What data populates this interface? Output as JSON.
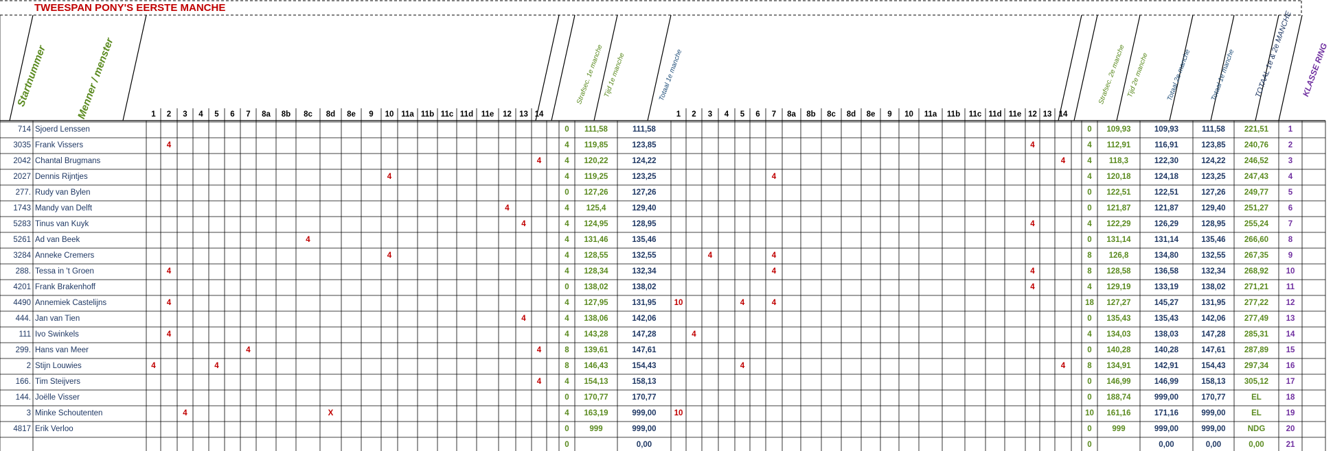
{
  "title": "TWEESPAN PONY'S   EERSTE MANCHE",
  "headers": {
    "startnummer": "Startnummer",
    "menner": "Menner / menster",
    "strafsec1": "Strafsec. 1e manche",
    "tijd1": "Tijd   1e manche",
    "totaal1": "Totaal   1e manche",
    "strafsec2": "Strafsec. 2e manche",
    "tijd2": "Tijd 2e manche",
    "totaal2e": "Totaal 2e manche",
    "totaal1e": "Totaal 1e manche",
    "totaal12": "TOTAAL 1e & 2e MANCHE",
    "klasse": "KLASSE RING"
  },
  "obstacles": [
    "1",
    "2",
    "3",
    "4",
    "5",
    "6",
    "7",
    "8a",
    "8b",
    "8c",
    "8d",
    "8e",
    "9",
    "10",
    "11a",
    "11b",
    "11c",
    "11d",
    "11e",
    "12",
    "13",
    "14"
  ],
  "rows": [
    {
      "nr": "714",
      "name": "Sjoerd Lenssen",
      "p1": {},
      "s1": "0",
      "t1": "111,58",
      "tot1": "111,58",
      "p2": {},
      "s2": "0",
      "t2": "109,93",
      "tot2": "109,93",
      "tot1b": "111,58",
      "total": "221,51",
      "klasse": "1"
    },
    {
      "nr": "3035",
      "name": "Frank Vissers",
      "p1": {
        "2": "4"
      },
      "s1": "4",
      "t1": "119,85",
      "tot1": "123,85",
      "p2": {
        "12": "4"
      },
      "s2": "4",
      "t2": "112,91",
      "tot2": "116,91",
      "tot1b": "123,85",
      "total": "240,76",
      "klasse": "2"
    },
    {
      "nr": "2042",
      "name": "Chantal Brugmans",
      "p1": {
        "14": "4"
      },
      "s1": "4",
      "t1": "120,22",
      "tot1": "124,22",
      "p2": {
        "14": "4"
      },
      "s2": "4",
      "t2": "118,3",
      "tot2": "122,30",
      "tot1b": "124,22",
      "total": "246,52",
      "klasse": "3"
    },
    {
      "nr": "2027",
      "name": "Dennis Rijntjes",
      "p1": {
        "10": "4"
      },
      "s1": "4",
      "t1": "119,25",
      "tot1": "123,25",
      "p2": {
        "7": "4"
      },
      "s2": "4",
      "t2": "120,18",
      "tot2": "124,18",
      "tot1b": "123,25",
      "total": "247,43",
      "klasse": "4"
    },
    {
      "nr": "277.",
      "name": "Rudy van Bylen",
      "p1": {},
      "s1": "0",
      "t1": "127,26",
      "tot1": "127,26",
      "p2": {},
      "s2": "0",
      "t2": "122,51",
      "tot2": "122,51",
      "tot1b": "127,26",
      "total": "249,77",
      "klasse": "5"
    },
    {
      "nr": "1743",
      "name": "Mandy van Delft",
      "p1": {
        "12": "4"
      },
      "s1": "4",
      "t1": "125,4",
      "tot1": "129,40",
      "p2": {},
      "s2": "0",
      "t2": "121,87",
      "tot2": "121,87",
      "tot1b": "129,40",
      "total": "251,27",
      "klasse": "6"
    },
    {
      "nr": "5283",
      "name": "Tinus van Kuyk",
      "p1": {
        "13": "4"
      },
      "s1": "4",
      "t1": "124,95",
      "tot1": "128,95",
      "p2": {
        "12": "4"
      },
      "s2": "4",
      "t2": "122,29",
      "tot2": "126,29",
      "tot1b": "128,95",
      "total": "255,24",
      "klasse": "7"
    },
    {
      "nr": "5261",
      "name": "Ad van Beek",
      "p1": {
        "8c": "4"
      },
      "s1": "4",
      "t1": "131,46",
      "tot1": "135,46",
      "p2": {},
      "s2": "0",
      "t2": "131,14",
      "tot2": "131,14",
      "tot1b": "135,46",
      "total": "266,60",
      "klasse": "8"
    },
    {
      "nr": "3284",
      "name": "Anneke Cremers",
      "p1": {
        "10": "4"
      },
      "s1": "4",
      "t1": "128,55",
      "tot1": "132,55",
      "p2": {
        "3": "4",
        "7": "4"
      },
      "s2": "8",
      "t2": "126,8",
      "tot2": "134,80",
      "tot1b": "132,55",
      "total": "267,35",
      "klasse": "9"
    },
    {
      "nr": "288.",
      "name": "Tessa in 't Groen",
      "p1": {
        "2": "4"
      },
      "s1": "4",
      "t1": "128,34",
      "tot1": "132,34",
      "p2": {
        "7": "4",
        "12": "4"
      },
      "s2": "8",
      "t2": "128,58",
      "tot2": "136,58",
      "tot1b": "132,34",
      "total": "268,92",
      "klasse": "10"
    },
    {
      "nr": "4201",
      "name": "Frank Brakenhoff",
      "p1": {},
      "s1": "0",
      "t1": "138,02",
      "tot1": "138,02",
      "p2": {
        "12": "4"
      },
      "s2": "4",
      "t2": "129,19",
      "tot2": "133,19",
      "tot1b": "138,02",
      "total": "271,21",
      "klasse": "11"
    },
    {
      "nr": "4490",
      "name": "Annemiek Castelijns",
      "p1": {
        "2": "4"
      },
      "s1": "4",
      "t1": "127,95",
      "tot1": "131,95",
      "p2": {
        "1": "10",
        "5": "4",
        "7": "4"
      },
      "s2": "18",
      "t2": "127,27",
      "tot2": "145,27",
      "tot1b": "131,95",
      "total": "277,22",
      "klasse": "12"
    },
    {
      "nr": "444.",
      "name": "Jan van Tien",
      "p1": {
        "13": "4"
      },
      "s1": "4",
      "t1": "138,06",
      "tot1": "142,06",
      "p2": {},
      "s2": "0",
      "t2": "135,43",
      "tot2": "135,43",
      "tot1b": "142,06",
      "total": "277,49",
      "klasse": "13"
    },
    {
      "nr": "111",
      "name": "Ivo Swinkels",
      "p1": {
        "2": "4"
      },
      "s1": "4",
      "t1": "143,28",
      "tot1": "147,28",
      "p2": {
        "2": "4"
      },
      "s2": "4",
      "t2": "134,03",
      "tot2": "138,03",
      "tot1b": "147,28",
      "total": "285,31",
      "klasse": "14"
    },
    {
      "nr": "299.",
      "name": "Hans van Meer",
      "p1": {
        "7": "4",
        "14": "4"
      },
      "s1": "8",
      "t1": "139,61",
      "tot1": "147,61",
      "p2": {},
      "s2": "0",
      "t2": "140,28",
      "tot2": "140,28",
      "tot1b": "147,61",
      "total": "287,89",
      "klasse": "15"
    },
    {
      "nr": "2",
      "name": "Stijn Louwies",
      "p1": {
        "1": "4",
        "5": "4"
      },
      "s1": "8",
      "t1": "146,43",
      "tot1": "154,43",
      "p2": {
        "5": "4",
        "14": "4"
      },
      "s2": "8",
      "t2": "134,91",
      "tot2": "142,91",
      "tot1b": "154,43",
      "total": "297,34",
      "klasse": "16"
    },
    {
      "nr": "166.",
      "name": "Tim Steijvers",
      "p1": {
        "14": "4"
      },
      "s1": "4",
      "t1": "154,13",
      "tot1": "158,13",
      "p2": {},
      "s2": "0",
      "t2": "146,99",
      "tot2": "146,99",
      "tot1b": "158,13",
      "total": "305,12",
      "klasse": "17"
    },
    {
      "nr": "144.",
      "name": "Joëlle Visser",
      "p1": {},
      "s1": "0",
      "t1": "170,77",
      "tot1": "170,77",
      "p2": {},
      "s2": "0",
      "t2": "188,74",
      "tot2": "999,00",
      "tot1b": "170,77",
      "total": "EL",
      "klasse": "18"
    },
    {
      "nr": "3",
      "name": "Minke Schoutenten",
      "p1": {
        "3": "4",
        "8d": "X"
      },
      "s1": "4",
      "t1": "163,19",
      "tot1": "999,00",
      "p2": {
        "1": "10"
      },
      "s2": "10",
      "t2": "161,16",
      "tot2": "171,16",
      "tot1b": "999,00",
      "total": "EL",
      "klasse": "19"
    },
    {
      "nr": "4817",
      "name": "Erik Verloo",
      "p1": {},
      "s1": "0",
      "t1": "999",
      "tot1": "999,00",
      "p2": {},
      "s2": "0",
      "t2": "999",
      "tot2": "999,00",
      "tot1b": "999,00",
      "total": "NDG",
      "klasse": "20"
    },
    {
      "nr": "",
      "name": "",
      "p1": {},
      "s1": "0",
      "t1": "",
      "tot1": "0,00",
      "p2": {},
      "s2": "0",
      "t2": "",
      "tot2": "0,00",
      "tot1b": "0,00",
      "total": "0,00",
      "klasse": "21"
    }
  ]
}
